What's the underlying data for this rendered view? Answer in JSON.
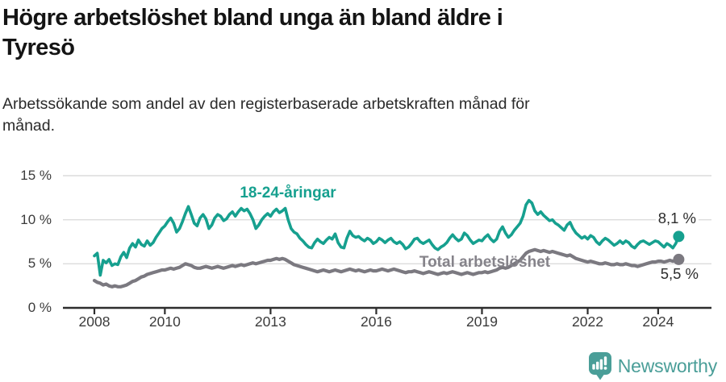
{
  "header": {
    "title": "Högre arbetslöshet bland unga än bland äldre i\nTyresö",
    "subtitle": "Arbetssökande som andel av den registerbaserade arbetskraften månad för\nmånad."
  },
  "colors": {
    "young_series": "#16a08f",
    "total_series": "#7b7980",
    "total_label_text": "#85838a",
    "end_label_text": "#2d2d2d",
    "axis": "#2d2d2d",
    "grid": "#dcdcdc",
    "tick_text": "#3b3b3b",
    "brand": "#4a9e98"
  },
  "chart_data": {
    "type": "line",
    "title": "Högre arbetslöshet bland unga än bland äldre i Tyresö",
    "subtitle": "Arbetssökande som andel av den registerbaserade arbetskraften månad för månad.",
    "x_unit": "month",
    "x_base_year": 2008,
    "x_start": "2008-01",
    "x_end": "2024-08",
    "ylim": [
      0,
      15.8
    ],
    "grid": "horizontal-only",
    "legend_position": "inline-labels",
    "y_ticks": [
      {
        "value": 0,
        "label": "0 %"
      },
      {
        "value": 5,
        "label": "5 %"
      },
      {
        "value": 10,
        "label": "10 %"
      },
      {
        "value": 15,
        "label": "15 %"
      }
    ],
    "x_ticks": [
      {
        "year": 2008,
        "label": "2008"
      },
      {
        "year": 2010,
        "label": "2010"
      },
      {
        "year": 2013,
        "label": "2013"
      },
      {
        "year": 2016,
        "label": "2016"
      },
      {
        "year": 2019,
        "label": "2019"
      },
      {
        "year": 2022,
        "label": "2022"
      },
      {
        "year": 2024,
        "label": "2024"
      }
    ],
    "series": [
      {
        "name": "18-24-åringar",
        "color": "#16a08f",
        "end_label": "8,1 %",
        "end_value": 8.1,
        "values": [
          5.9,
          6.2,
          3.7,
          5.4,
          5.1,
          5.5,
          4.8,
          5.0,
          4.9,
          5.8,
          6.3,
          5.7,
          6.8,
          7.3,
          6.9,
          7.7,
          7.2,
          7.0,
          7.6,
          7.1,
          7.4,
          8.0,
          8.5,
          9.0,
          9.3,
          9.8,
          10.2,
          9.6,
          8.6,
          9.0,
          9.8,
          10.7,
          11.5,
          10.6,
          9.6,
          9.3,
          10.2,
          10.6,
          10.1,
          9.0,
          9.4,
          10.2,
          10.6,
          10.4,
          9.9,
          10.1,
          10.6,
          10.9,
          10.4,
          10.9,
          11.3,
          11.0,
          11.2,
          10.7,
          10.0,
          9.0,
          9.4,
          10.0,
          10.4,
          10.7,
          10.4,
          10.9,
          11.2,
          10.8,
          11.0,
          11.3,
          10.0,
          9.0,
          8.6,
          8.4,
          7.9,
          7.6,
          7.2,
          6.9,
          6.8,
          7.4,
          7.8,
          7.5,
          7.3,
          7.7,
          8.0,
          7.8,
          8.4,
          7.4,
          6.9,
          6.8,
          7.9,
          8.7,
          8.2,
          8.0,
          8.1,
          7.8,
          7.6,
          7.9,
          7.7,
          7.3,
          7.5,
          7.9,
          7.7,
          7.4,
          7.7,
          7.9,
          7.5,
          7.3,
          7.5,
          7.2,
          6.7,
          6.9,
          7.3,
          7.8,
          7.9,
          7.5,
          7.3,
          7.5,
          7.7,
          7.2,
          6.8,
          6.6,
          6.9,
          7.1,
          7.4,
          7.9,
          8.3,
          7.9,
          7.6,
          7.8,
          8.5,
          8.2,
          7.7,
          7.3,
          7.5,
          7.7,
          7.6,
          8.0,
          8.3,
          7.8,
          7.5,
          7.8,
          8.7,
          9.2,
          8.5,
          8.0,
          8.3,
          8.8,
          9.2,
          9.6,
          10.4,
          11.7,
          12.2,
          11.9,
          11.0,
          10.6,
          10.9,
          10.5,
          10.2,
          9.9,
          10.0,
          9.6,
          9.4,
          9.1,
          8.8,
          9.4,
          9.7,
          9.0,
          8.5,
          8.2,
          7.9,
          8.1,
          7.8,
          8.2,
          8.0,
          7.5,
          7.2,
          7.6,
          7.9,
          7.7,
          7.4,
          7.1,
          7.3,
          7.6,
          7.3,
          7.6,
          7.4,
          7.0,
          6.8,
          7.2,
          7.5,
          7.6,
          7.4,
          7.2,
          7.4,
          7.6,
          7.5,
          7.2,
          6.9,
          7.3,
          7.1,
          6.8,
          7.3,
          8.1
        ]
      },
      {
        "name": "Total arbetslöshet",
        "color": "#7b7980",
        "end_label": "5,5 %",
        "end_value": 5.5,
        "values": [
          3.1,
          2.9,
          2.8,
          2.6,
          2.7,
          2.5,
          2.4,
          2.5,
          2.4,
          2.4,
          2.5,
          2.6,
          2.8,
          3.0,
          3.1,
          3.3,
          3.5,
          3.6,
          3.8,
          3.9,
          4.0,
          4.1,
          4.2,
          4.3,
          4.3,
          4.4,
          4.5,
          4.4,
          4.5,
          4.6,
          4.8,
          5.0,
          4.9,
          4.8,
          4.6,
          4.5,
          4.5,
          4.6,
          4.7,
          4.6,
          4.5,
          4.6,
          4.7,
          4.6,
          4.5,
          4.6,
          4.7,
          4.8,
          4.7,
          4.8,
          4.9,
          4.8,
          4.9,
          5.0,
          5.1,
          5.0,
          5.1,
          5.2,
          5.3,
          5.4,
          5.4,
          5.5,
          5.6,
          5.5,
          5.6,
          5.5,
          5.3,
          5.1,
          4.9,
          4.8,
          4.7,
          4.6,
          4.5,
          4.4,
          4.3,
          4.2,
          4.1,
          4.2,
          4.3,
          4.2,
          4.1,
          4.2,
          4.3,
          4.2,
          4.1,
          4.2,
          4.3,
          4.4,
          4.3,
          4.2,
          4.3,
          4.2,
          4.1,
          4.2,
          4.3,
          4.2,
          4.2,
          4.3,
          4.4,
          4.3,
          4.2,
          4.3,
          4.4,
          4.3,
          4.2,
          4.1,
          4.0,
          4.1,
          4.1,
          4.2,
          4.1,
          4.0,
          3.9,
          4.0,
          4.1,
          4.0,
          3.9,
          3.8,
          3.9,
          4.0,
          3.9,
          4.0,
          4.1,
          4.0,
          3.9,
          3.8,
          3.9,
          4.0,
          3.9,
          3.8,
          3.9,
          4.0,
          4.0,
          4.1,
          4.0,
          4.1,
          4.2,
          4.3,
          4.5,
          4.6,
          4.5,
          4.6,
          4.8,
          5.0,
          5.2,
          5.4,
          5.8,
          6.2,
          6.4,
          6.5,
          6.6,
          6.5,
          6.4,
          6.5,
          6.4,
          6.3,
          6.4,
          6.3,
          6.2,
          6.1,
          6.0,
          5.9,
          6.0,
          5.8,
          5.6,
          5.5,
          5.4,
          5.3,
          5.2,
          5.3,
          5.2,
          5.1,
          5.0,
          5.0,
          5.1,
          5.0,
          4.9,
          4.9,
          5.0,
          4.9,
          4.9,
          5.0,
          4.9,
          4.8,
          4.8,
          4.7,
          4.8,
          4.9,
          5.0,
          5.1,
          5.2,
          5.2,
          5.3,
          5.3,
          5.2,
          5.3,
          5.4,
          5.3,
          5.4,
          5.5
        ]
      }
    ]
  },
  "branding": {
    "name": "Newsworthy",
    "logo_icon": "newsworthy-speech-bubble-bar-chart-icon"
  }
}
